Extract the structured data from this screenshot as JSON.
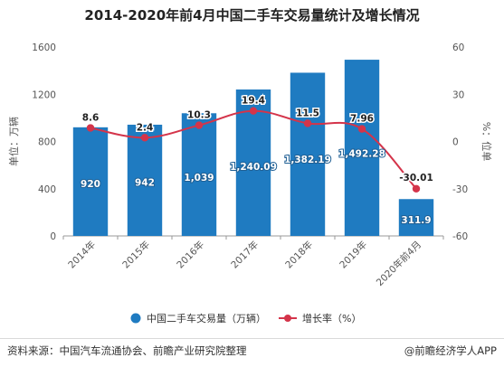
{
  "chart_data": {
    "type": "bar",
    "title": "2014-2020年前4月中国二手车交易量统计及增长情况",
    "categories": [
      "2014年",
      "2015年",
      "2016年",
      "2017年",
      "2018年",
      "2019年",
      "2020年前4月"
    ],
    "series": [
      {
        "name": "中国二手车交易量（万辆）",
        "type": "bar",
        "axis": "left",
        "values": [
          920,
          942,
          1039,
          1240.09,
          1382.19,
          1492.28,
          311.9
        ],
        "labels": [
          "920",
          "942",
          "1,039",
          "1,240.09",
          "1,382.19",
          "1,492.28",
          "311.9"
        ],
        "color": "#1f7bc1"
      },
      {
        "name": "增长率（%）",
        "type": "line",
        "axis": "right",
        "values": [
          8.6,
          2.4,
          10.3,
          19.4,
          11.5,
          7.96,
          -30.01
        ],
        "labels": [
          "8.6",
          "2.4",
          "10.3",
          "19.4",
          "11.5",
          "7.96",
          "-30.01"
        ],
        "color": "#d4344a"
      }
    ],
    "ylabel": "单位：万辆",
    "y2label": "%：位单",
    "ylim": [
      0,
      1600
    ],
    "yticks": [
      0,
      400,
      800,
      1200,
      1600
    ],
    "y2lim": [
      -60,
      60
    ],
    "y2ticks": [
      -60,
      -30,
      0,
      30,
      60
    ],
    "legend_position": "bottom",
    "grid": false
  },
  "footer": {
    "source": "资料来源：中国汽车流通协会、前瞻产业研究院整理",
    "brand": "@前瞻经济学人APP"
  }
}
